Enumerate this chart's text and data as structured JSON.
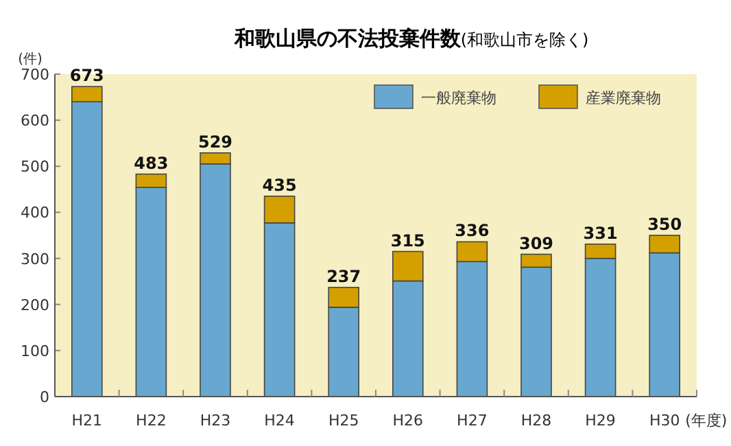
{
  "chart_data": {
    "type": "bar",
    "title": "和歌山県の不法投棄件数",
    "subtitle": "(和歌山市を除く)",
    "ylabel": "(件)",
    "xlabel": "(年度)",
    "categories": [
      "H21",
      "H22",
      "H23",
      "H24",
      "H25",
      "H26",
      "H27",
      "H28",
      "H29",
      "H30"
    ],
    "stacked": true,
    "series": [
      {
        "name": "一般廃棄物",
        "color": "#68a8d0",
        "values": [
          640,
          454,
          505,
          377,
          194,
          251,
          293,
          281,
          300,
          312
        ]
      },
      {
        "name": "産業廃棄物",
        "color": "#d4a000",
        "values": [
          33,
          29,
          24,
          58,
          43,
          64,
          43,
          28,
          31,
          38
        ]
      }
    ],
    "totals": [
      "673",
      "483",
      "529",
      "435",
      "237",
      "315",
      "336",
      "309",
      "331",
      "350"
    ],
    "ylim": [
      0,
      700
    ],
    "yticks": [
      0,
      100,
      200,
      300,
      400,
      500,
      600,
      700
    ],
    "legend": "top right"
  }
}
